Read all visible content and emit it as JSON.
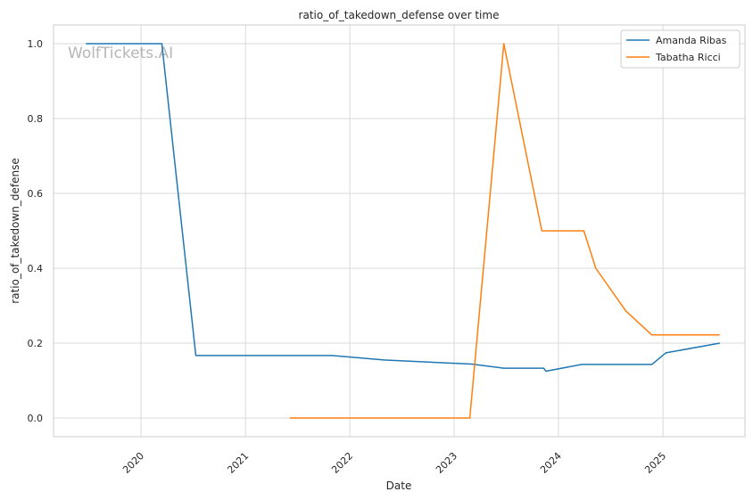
{
  "chart_data": {
    "type": "line",
    "title": "ratio_of_takedown_defense over time",
    "xlabel": "Date",
    "ylabel": "ratio_of_takedown_defense",
    "watermark": "WolfTickets.AI",
    "xlim": [
      "2019-03-01",
      "2025-10-15"
    ],
    "ylim": [
      -0.05,
      1.05
    ],
    "x_ticks": [
      {
        "date": "2020-01-01",
        "label": "2020"
      },
      {
        "date": "2021-01-01",
        "label": "2021"
      },
      {
        "date": "2022-01-01",
        "label": "2022"
      },
      {
        "date": "2023-01-01",
        "label": "2023"
      },
      {
        "date": "2024-01-01",
        "label": "2024"
      },
      {
        "date": "2025-01-01",
        "label": "2025"
      }
    ],
    "y_ticks": [
      {
        "value": 0.0,
        "label": "0.0"
      },
      {
        "value": 0.2,
        "label": "0.2"
      },
      {
        "value": 0.4,
        "label": "0.4"
      },
      {
        "value": 0.6,
        "label": "0.6"
      },
      {
        "value": 0.8,
        "label": "0.8"
      },
      {
        "value": 1.0,
        "label": "1.0"
      }
    ],
    "grid": true,
    "legend_position": "top-right",
    "series": [
      {
        "name": "Amanda Ribas",
        "color": "#1f77b4",
        "points": [
          {
            "x": "2019-06-22",
            "y": 1.0
          },
          {
            "x": "2020-03-14",
            "y": 1.0
          },
          {
            "x": "2020-07-11",
            "y": 0.167
          },
          {
            "x": "2021-10-30",
            "y": 0.167
          },
          {
            "x": "2022-04-30",
            "y": 0.155
          },
          {
            "x": "2023-03-04",
            "y": 0.144
          },
          {
            "x": "2023-06-24",
            "y": 0.133
          },
          {
            "x": "2023-11-11",
            "y": 0.133
          },
          {
            "x": "2023-11-18",
            "y": 0.125
          },
          {
            "x": "2024-03-23",
            "y": 0.143
          },
          {
            "x": "2024-11-23",
            "y": 0.143
          },
          {
            "x": "2025-01-11",
            "y": 0.174
          },
          {
            "x": "2025-07-19",
            "y": 0.2
          }
        ]
      },
      {
        "name": "Tabatha Ricci",
        "color": "#ff7f0e",
        "points": [
          {
            "x": "2021-06-05",
            "y": 0.0
          },
          {
            "x": "2023-02-25",
            "y": 0.0
          },
          {
            "x": "2023-06-24",
            "y": 1.0
          },
          {
            "x": "2023-11-04",
            "y": 0.5
          },
          {
            "x": "2024-03-30",
            "y": 0.5
          },
          {
            "x": "2024-05-11",
            "y": 0.4
          },
          {
            "x": "2024-08-24",
            "y": 0.286
          },
          {
            "x": "2024-11-23",
            "y": 0.222
          },
          {
            "x": "2025-07-19",
            "y": 0.222
          }
        ]
      }
    ]
  }
}
